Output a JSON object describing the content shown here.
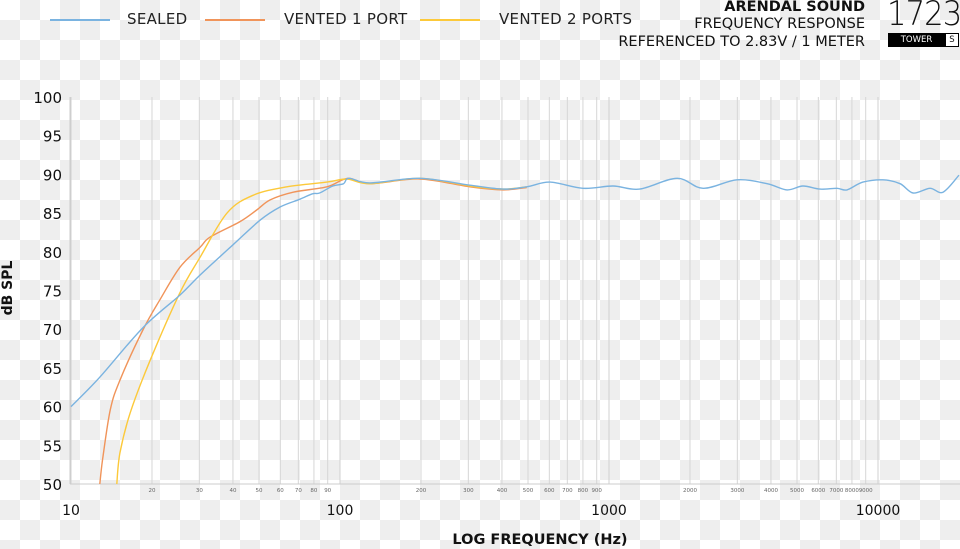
{
  "header": {
    "brand": "ARENDAL SOUND",
    "title": "FREQUENCY RESPONSE",
    "subtitle": "REFERENCED TO 2.83V / 1 METER",
    "logo_number": "1723",
    "logo_model": "TOWER",
    "logo_variant": "S"
  },
  "chart_data": {
    "type": "line",
    "xlabel": "LOG FREQUENCY (Hz)",
    "ylabel": "dB SPL",
    "x_scale": "log",
    "xlim": [
      10,
      20000
    ],
    "ylim": [
      50,
      100
    ],
    "grid": "vertical only",
    "legend_placement": "top-left",
    "y_ticks": [
      "50",
      "55",
      "60",
      "65",
      "70",
      "75",
      "80",
      "85",
      "90",
      "95",
      "100"
    ],
    "x_major_ticks": [
      {
        "value": 10,
        "label": "10"
      },
      {
        "value": 100,
        "label": "100"
      },
      {
        "value": 1000,
        "label": "1000"
      },
      {
        "value": 10000,
        "label": "10000"
      }
    ],
    "x_minor_ticks": [
      {
        "value": 20,
        "label": "20"
      },
      {
        "value": 30,
        "label": "30"
      },
      {
        "value": 40,
        "label": "40"
      },
      {
        "value": 50,
        "label": "50"
      },
      {
        "value": 60,
        "label": "60"
      },
      {
        "value": 70,
        "label": "70"
      },
      {
        "value": 80,
        "label": "80"
      },
      {
        "value": 90,
        "label": "90"
      },
      {
        "value": 200,
        "label": "200"
      },
      {
        "value": 300,
        "label": "300"
      },
      {
        "value": 400,
        "label": "400"
      },
      {
        "value": 500,
        "label": "500"
      },
      {
        "value": 600,
        "label": "600"
      },
      {
        "value": 700,
        "label": "700"
      },
      {
        "value": 800,
        "label": "800"
      },
      {
        "value": 900,
        "label": "900"
      },
      {
        "value": 2000,
        "label": "2000"
      },
      {
        "value": 3000,
        "label": "3000"
      },
      {
        "value": 4000,
        "label": "4000"
      },
      {
        "value": 5000,
        "label": "5000"
      },
      {
        "value": 6000,
        "label": "6000"
      },
      {
        "value": 7000,
        "label": "7000"
      },
      {
        "value": 8000,
        "label": "8000"
      },
      {
        "value": 9000,
        "label": "9000"
      }
    ],
    "series": [
      {
        "name": "SEALED",
        "color": "#7ab3e0",
        "points": [
          [
            10,
            60.0
          ],
          [
            12.8,
            63.8
          ],
          [
            18.5,
            70.2
          ],
          [
            25.4,
            74.4
          ],
          [
            30.2,
            77.0
          ],
          [
            40,
            80.9
          ],
          [
            50.5,
            84.1
          ],
          [
            60,
            85.8
          ],
          [
            71,
            86.8
          ],
          [
            79,
            87.5
          ],
          [
            84,
            87.6
          ],
          [
            94,
            88.5
          ],
          [
            103,
            88.8
          ],
          [
            108,
            89.5
          ],
          [
            129,
            88.9
          ],
          [
            198,
            89.5
          ],
          [
            304,
            88.6
          ],
          [
            404,
            88.1
          ],
          [
            495,
            88.4
          ],
          [
            604,
            89.0
          ],
          [
            800,
            88.2
          ],
          [
            1035,
            88.5
          ],
          [
            1300,
            88.1
          ],
          [
            1790,
            89.5
          ],
          [
            2240,
            88.2
          ],
          [
            2990,
            89.3
          ],
          [
            3870,
            88.8
          ],
          [
            4590,
            88.0
          ],
          [
            5260,
            88.5
          ],
          [
            6080,
            88.1
          ],
          [
            7040,
            88.2
          ],
          [
            7670,
            88.0
          ],
          [
            8790,
            89.0
          ],
          [
            10440,
            89.3
          ],
          [
            12080,
            88.8
          ],
          [
            13500,
            87.6
          ],
          [
            15600,
            88.2
          ],
          [
            17450,
            87.7
          ],
          [
            20000,
            89.9
          ]
        ]
      },
      {
        "name": "VENTED 1 PORT",
        "color": "#f0945a",
        "points": [
          [
            12.8,
            50.0
          ],
          [
            13.1,
            53.1
          ],
          [
            14.0,
            59.6
          ],
          [
            15.2,
            63.4
          ],
          [
            18.5,
            69.9
          ],
          [
            21.4,
            73.8
          ],
          [
            25.4,
            78.0
          ],
          [
            30.2,
            80.6
          ],
          [
            32.9,
            81.9
          ],
          [
            42.5,
            83.9
          ],
          [
            49,
            85.4
          ],
          [
            55,
            86.7
          ],
          [
            67,
            87.7
          ],
          [
            89.5,
            88.4
          ],
          [
            107,
            89.5
          ],
          [
            129,
            88.8
          ],
          [
            198,
            89.4
          ],
          [
            304,
            88.4
          ],
          [
            404,
            88.0
          ],
          [
            495,
            88.3
          ]
        ]
      },
      {
        "name": "VENTED 2 PORTS",
        "color": "#fcc93a",
        "points": [
          [
            14.8,
            50.0
          ],
          [
            15.2,
            54.0
          ],
          [
            16.6,
            59.2
          ],
          [
            19.7,
            66.0
          ],
          [
            25.4,
            74.7
          ],
          [
            30.2,
            79.3
          ],
          [
            38,
            85.0
          ],
          [
            47.5,
            87.3
          ],
          [
            63.5,
            88.4
          ],
          [
            89.5,
            89.0
          ],
          [
            106,
            89.4
          ],
          [
            129,
            88.8
          ],
          [
            198,
            89.5
          ],
          [
            304,
            88.5
          ],
          [
            404,
            88.1
          ],
          [
            495,
            88.4
          ]
        ]
      }
    ]
  }
}
